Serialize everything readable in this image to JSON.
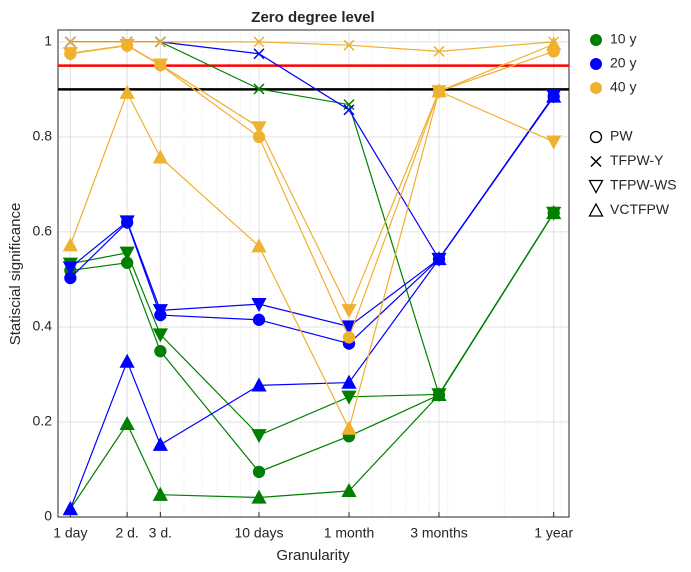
{
  "chart_data": {
    "type": "line",
    "title": "Zero degree level",
    "xlabel": "Granularity",
    "ylabel": "Statiscial significance",
    "x": [
      1,
      2,
      3,
      10,
      30,
      90,
      365
    ],
    "xlim": [
      0.86,
      440
    ],
    "xscale": "log",
    "xticks": [
      {
        "value": 1,
        "label": "1 day"
      },
      {
        "value": 2,
        "label": "2 d."
      },
      {
        "value": 3,
        "label": "3 d."
      },
      {
        "value": 10,
        "label": "10 days"
      },
      {
        "value": 30,
        "label": "1 month"
      },
      {
        "value": 90,
        "label": "3 months"
      },
      {
        "value": 365,
        "label": "1 year"
      }
    ],
    "ylim": [
      0,
      1.025
    ],
    "yticks": [
      0,
      0.2,
      0.4,
      0.6,
      0.8,
      1
    ],
    "grid": true,
    "reference_lines": [
      {
        "value": 0.95,
        "color": "#ff0000"
      },
      {
        "value": 0.9,
        "color": "#000000"
      }
    ],
    "groups": [
      {
        "name": "10 y",
        "color": "#008000"
      },
      {
        "name": "20 y",
        "color": "#0000ff"
      },
      {
        "name": "40 y",
        "color": "#f0b030"
      }
    ],
    "methods": [
      {
        "name": "PW",
        "marker": "circle"
      },
      {
        "name": "TFPW-Y",
        "marker": "x"
      },
      {
        "name": "TFPW-WS",
        "marker": "triangle-down"
      },
      {
        "name": "VCTFPW",
        "marker": "triangle-up"
      }
    ],
    "series": [
      {
        "group": 0,
        "method": 0,
        "values": [
          0.519,
          0.535,
          0.349,
          0.095,
          0.17,
          0.257,
          0.64
        ]
      },
      {
        "group": 0,
        "method": 1,
        "values": [
          1.0,
          1.0,
          1.0,
          0.901,
          0.868,
          0.258,
          0.64
        ]
      },
      {
        "group": 0,
        "method": 2,
        "values": [
          0.533,
          0.556,
          0.384,
          0.172,
          0.253,
          0.258,
          0.64
        ]
      },
      {
        "group": 0,
        "method": 3,
        "values": [
          0.017,
          0.196,
          0.047,
          0.041,
          0.055,
          0.257,
          0.64
        ]
      },
      {
        "group": 1,
        "method": 0,
        "values": [
          0.503,
          0.62,
          0.425,
          0.415,
          0.365,
          0.543,
          0.885
        ]
      },
      {
        "group": 1,
        "method": 1,
        "values": [
          1.0,
          1.0,
          1.0,
          0.975,
          0.857,
          0.543,
          0.885
        ]
      },
      {
        "group": 1,
        "method": 2,
        "values": [
          0.525,
          0.622,
          0.435,
          0.448,
          0.401,
          0.543,
          0.887
        ]
      },
      {
        "group": 1,
        "method": 3,
        "values": [
          0.017,
          0.327,
          0.152,
          0.277,
          0.283,
          0.543,
          0.885
        ]
      },
      {
        "group": 2,
        "method": 0,
        "values": [
          0.975,
          0.992,
          0.951,
          0.8,
          0.378,
          0.896,
          0.98
        ]
      },
      {
        "group": 2,
        "method": 1,
        "values": [
          1.0,
          1.0,
          1.0,
          1.0,
          0.993,
          0.98,
          1.0
        ]
      },
      {
        "group": 2,
        "method": 2,
        "values": [
          0.976,
          0.993,
          0.952,
          0.82,
          0.435,
          0.896,
          0.79
        ]
      },
      {
        "group": 2,
        "method": 3,
        "values": [
          0.572,
          0.893,
          0.757,
          0.57,
          0.186,
          0.896,
          0.995
        ]
      }
    ]
  }
}
